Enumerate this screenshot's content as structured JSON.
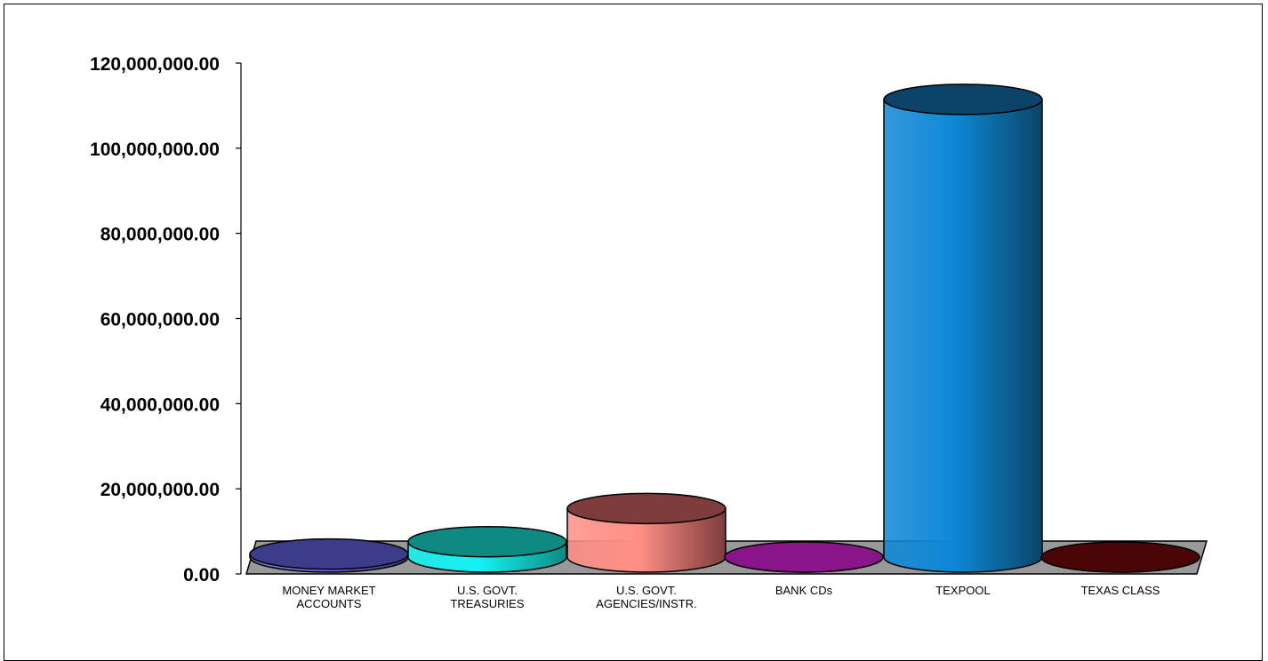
{
  "chart_data": {
    "type": "bar",
    "style": "3d-cylinder",
    "title": "",
    "xlabel": "",
    "ylabel": "",
    "ylim": [
      0,
      120000000
    ],
    "y_ticks": [
      0,
      20000000,
      40000000,
      60000000,
      80000000,
      100000000,
      120000000
    ],
    "y_tick_labels": [
      "0.00",
      "20,000,000.00",
      "40,000,000.00",
      "60,000,000.00",
      "80,000,000.00",
      "100,000,000.00",
      "120,000,000.00"
    ],
    "grid": false,
    "legend": "none",
    "categories": [
      [
        "MONEY MARKET",
        "ACCOUNTS"
      ],
      [
        "U.S. GOVT.",
        "TREASURIES"
      ],
      [
        "U.S. GOVT.",
        "AGENCIES/INSTR."
      ],
      [
        "BANK CDs"
      ],
      [
        "TEXPOOL"
      ],
      [
        "TEXAS CLASS"
      ]
    ],
    "values": [
      700000,
      3600000,
      11400000,
      0,
      107500000,
      0
    ],
    "colors": [
      {
        "side": "#6a6ad0",
        "top": "#3c3c8a"
      },
      {
        "side": "#14f2f2",
        "top": "#0e8a82"
      },
      {
        "side": "#ff8f86",
        "top": "#7e3c3c"
      },
      {
        "side": "#8a158a",
        "top": "#8a158a"
      },
      {
        "side": "#0e88d6",
        "top": "#0b4468"
      },
      {
        "side": "#5a0a0a",
        "top": "#4a0606"
      }
    ],
    "floor_color": "#999999"
  }
}
